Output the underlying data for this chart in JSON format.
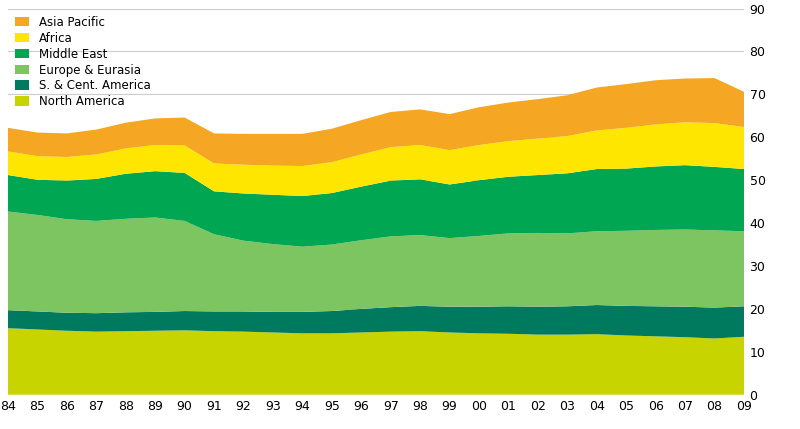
{
  "years": [
    1984,
    1985,
    1986,
    1987,
    1988,
    1989,
    1990,
    1991,
    1992,
    1993,
    1994,
    1995,
    1996,
    1997,
    1998,
    1999,
    2000,
    2001,
    2002,
    2003,
    2004,
    2005,
    2006,
    2007,
    2008,
    2009
  ],
  "regions": [
    "North America",
    "S. & Cent. America",
    "Europe & Eurasia",
    "Middle East",
    "Africa",
    "Asia Pacific"
  ],
  "colors": [
    "#c8d400",
    "#007a5e",
    "#7dc560",
    "#00a651",
    "#ffe600",
    "#f5a623"
  ],
  "data": {
    "North America": [
      15.5,
      15.2,
      14.9,
      14.7,
      14.8,
      14.9,
      15.0,
      14.8,
      14.7,
      14.5,
      14.3,
      14.3,
      14.5,
      14.7,
      14.8,
      14.5,
      14.3,
      14.2,
      14.0,
      14.0,
      14.1,
      13.8,
      13.6,
      13.4,
      13.1,
      13.5
    ],
    "S. & Cent. America": [
      4.2,
      4.2,
      4.2,
      4.3,
      4.4,
      4.4,
      4.5,
      4.6,
      4.7,
      4.8,
      5.0,
      5.2,
      5.5,
      5.7,
      5.9,
      6.0,
      6.2,
      6.4,
      6.5,
      6.6,
      6.8,
      6.9,
      7.0,
      7.1,
      7.2,
      7.1
    ],
    "Europe & Eurasia": [
      23.0,
      22.5,
      21.8,
      21.5,
      21.8,
      22.0,
      21.0,
      18.0,
      16.5,
      15.8,
      15.2,
      15.5,
      16.0,
      16.5,
      16.5,
      16.0,
      16.5,
      17.0,
      17.2,
      17.0,
      17.2,
      17.5,
      17.8,
      18.0,
      18.0,
      17.5
    ],
    "Middle East": [
      8.5,
      8.2,
      9.0,
      9.8,
      10.5,
      10.8,
      11.2,
      10.0,
      11.0,
      11.5,
      11.8,
      12.0,
      12.5,
      13.0,
      13.0,
      12.5,
      13.0,
      13.2,
      13.5,
      14.0,
      14.5,
      14.5,
      14.8,
      15.0,
      14.8,
      14.5
    ],
    "Africa": [
      5.5,
      5.5,
      5.5,
      5.7,
      5.9,
      6.1,
      6.4,
      6.5,
      6.7,
      6.8,
      7.0,
      7.2,
      7.5,
      7.8,
      8.0,
      8.0,
      8.2,
      8.3,
      8.5,
      8.7,
      9.0,
      9.5,
      9.8,
      10.0,
      10.2,
      9.8
    ],
    "Asia Pacific": [
      5.5,
      5.5,
      5.5,
      5.8,
      6.0,
      6.2,
      6.5,
      7.0,
      7.2,
      7.4,
      7.5,
      7.8,
      8.0,
      8.2,
      8.3,
      8.4,
      8.8,
      9.0,
      9.2,
      9.5,
      10.0,
      10.2,
      10.3,
      10.2,
      10.5,
      8.2
    ]
  },
  "ylim": [
    0,
    90
  ],
  "yticks": [
    0,
    10,
    20,
    30,
    40,
    50,
    60,
    70,
    80,
    90
  ],
  "background_color": "#ffffff",
  "grid_color": "#cccccc"
}
